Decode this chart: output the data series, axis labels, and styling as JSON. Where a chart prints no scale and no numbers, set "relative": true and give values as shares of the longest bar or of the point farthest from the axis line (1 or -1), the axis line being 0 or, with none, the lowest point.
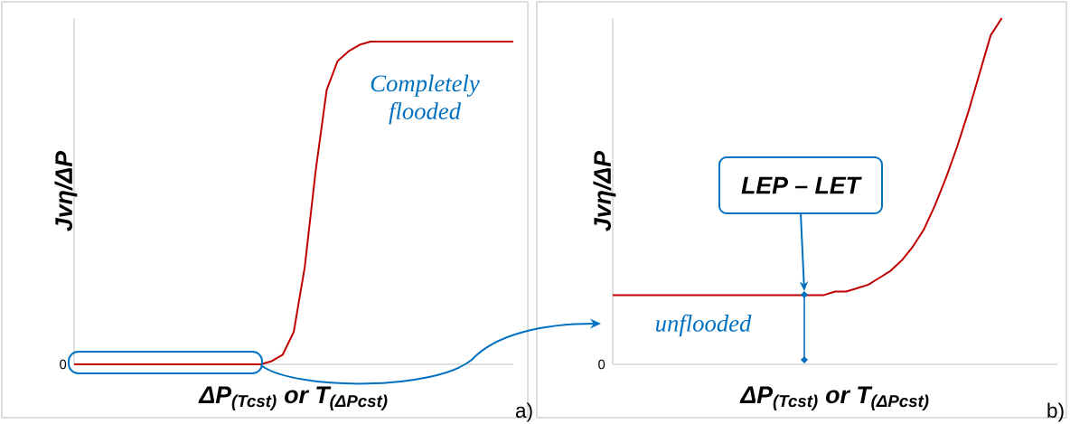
{
  "chart_data": [
    {
      "type": "line",
      "relative": true,
      "categories": [
        null,
        null,
        null,
        null,
        null,
        null,
        null,
        null,
        null,
        null,
        null,
        null,
        null,
        null,
        null,
        null,
        null,
        null,
        null,
        null,
        null,
        null,
        null,
        null,
        null,
        null,
        null,
        null,
        null,
        null,
        null,
        null,
        null,
        null,
        null,
        null,
        null,
        null,
        null,
        null,
        null
      ],
      "values": [
        0,
        0,
        0,
        0,
        0,
        0,
        0,
        0,
        0,
        0,
        0,
        0,
        0,
        0,
        0,
        0,
        0,
        0,
        0.01,
        0.03,
        0.1,
        0.3,
        0.6,
        0.85,
        0.94,
        0.97,
        0.99,
        1,
        1,
        1,
        1,
        1,
        1,
        1,
        1,
        1,
        1,
        1,
        1,
        1,
        1
      ],
      "color": "#c00000",
      "xlabel": "ΔP$_{(Tcst)}$ or T$_{(ΔPcst)}$",
      "ylabel": "Jvη/ΔP",
      "annotations": [
        "Completely flooded",
        "0",
        "a)"
      ]
    },
    {
      "type": "line",
      "relative": true,
      "categories": [
        null,
        null,
        null,
        null,
        null,
        null,
        null,
        null,
        null,
        null,
        null,
        null,
        null,
        null,
        null,
        null,
        null,
        null,
        null,
        null,
        null,
        null,
        null,
        null,
        null,
        null,
        null,
        null,
        null,
        null,
        null,
        null,
        null,
        null,
        null,
        null,
        null,
        null,
        null,
        null,
        null
      ],
      "values": [
        0.2,
        0.2,
        0.2,
        0.2,
        0.2,
        0.2,
        0.2,
        0.2,
        0.2,
        0.2,
        0.2,
        0.2,
        0.2,
        0.2,
        0.2,
        0.2,
        0.2,
        0.2,
        0.2,
        0.2,
        0.21,
        0.21,
        0.22,
        0.23,
        0.25,
        0.27,
        0.3,
        0.34,
        0.39,
        0.46,
        0.54,
        0.63,
        0.73,
        0.84,
        0.95,
        1,
        null,
        null,
        null,
        null,
        null
      ],
      "color": "#c00000",
      "xlabel": "ΔP$_{(Tcst)}$ or T$_{(ΔPcst)}$",
      "ylabel": "Jvη/ΔP",
      "annotations": [
        "LEP – LET",
        "unflooded",
        "0",
        "b)"
      ]
    }
  ]
}
